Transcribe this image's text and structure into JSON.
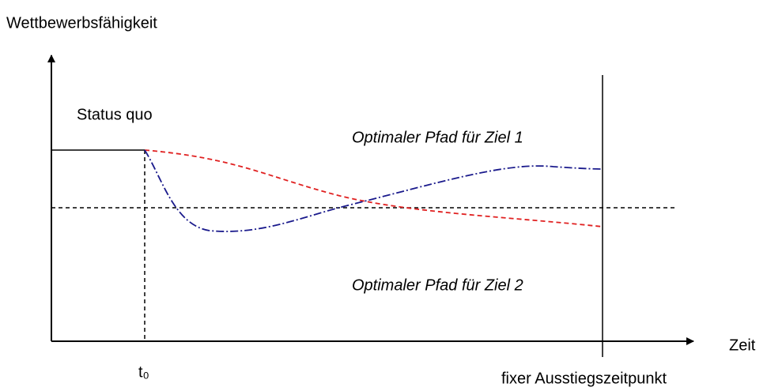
{
  "axes": {
    "y_label": "Wettbewerbsfähigkeit",
    "x_label": "Zeit"
  },
  "labels": {
    "status_quo": "Status quo",
    "path_1": "Optimaler Pfad für Ziel 1",
    "path_2": "Optimaler Pfad für Ziel 2",
    "t0": "t₀",
    "exit": "fixer Ausstiegszeitpunkt"
  }
}
